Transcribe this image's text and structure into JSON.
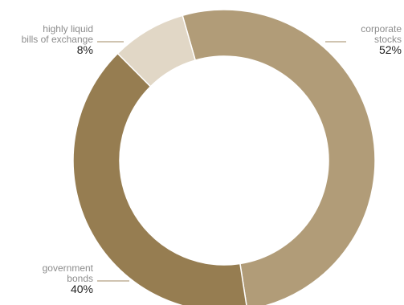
{
  "chart_data": {
    "type": "pie",
    "donut": true,
    "slices": [
      {
        "label_lines": [
          "corporate",
          "stocks"
        ],
        "value_label": "52%",
        "value": 52,
        "color": "#b19c78",
        "label_side": "right"
      },
      {
        "label_lines": [
          "government",
          "bonds"
        ],
        "value_label": "40%",
        "value": 40,
        "color": "#967d51",
        "label_side": "left"
      },
      {
        "label_lines": [
          "highly liquid",
          "bills of exchange"
        ],
        "value_label": "8%",
        "value": 8,
        "color": "#e1d7c6",
        "label_side": "left"
      }
    ],
    "legend": "none"
  }
}
